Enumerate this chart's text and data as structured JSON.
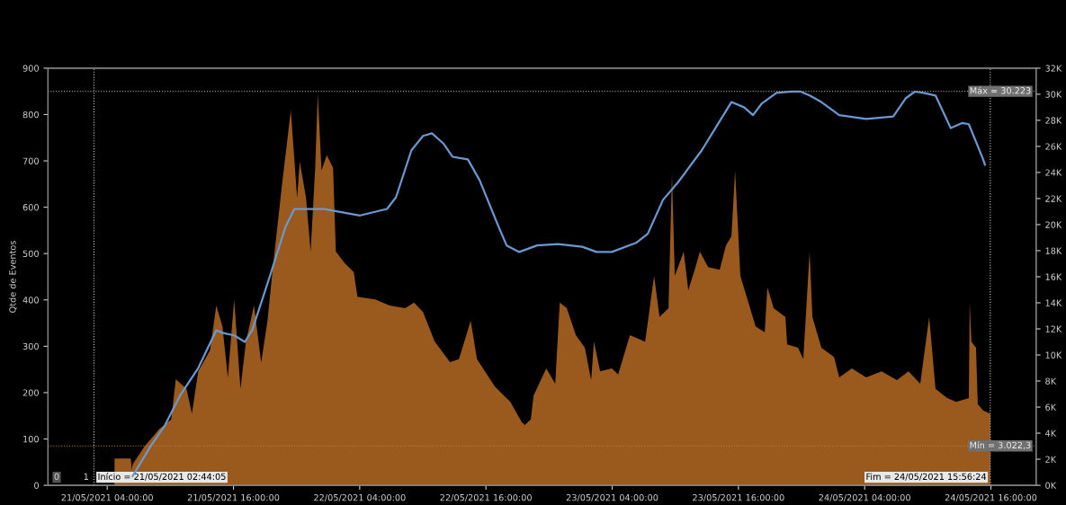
{
  "chart_data": {
    "type": "area",
    "ylabel": "Qtde de Eventos",
    "xlim": [
      "2021-05-20T22:22",
      "2021-05-24T20:18"
    ],
    "xticks": [
      {
        "value": "2021-05-21T04:00",
        "label": "21/05/2021 04:00:00"
      },
      {
        "value": "2021-05-21T16:00",
        "label": "21/05/2021 16:00:00"
      },
      {
        "value": "2021-05-22T04:00",
        "label": "22/05/2021 04:00:00"
      },
      {
        "value": "2021-05-22T16:00",
        "label": "22/05/2021 16:00:00"
      },
      {
        "value": "2021-05-23T04:00",
        "label": "23/05/2021 04:00:00"
      },
      {
        "value": "2021-05-23T16:00",
        "label": "23/05/2021 16:00:00"
      },
      {
        "value": "2021-05-24T04:00",
        "label": "24/05/2021 04:00:00"
      },
      {
        "value": "2021-05-24T16:00",
        "label": "24/05/2021 16:00:00"
      }
    ],
    "ylim": [
      0,
      900
    ],
    "yticks": [
      0,
      100,
      200,
      300,
      400,
      500,
      600,
      700,
      800,
      900
    ],
    "y2lim": [
      0,
      32000
    ],
    "y2ticks": [
      {
        "value": 0,
        "label": "0K"
      },
      {
        "value": 2000,
        "label": "2K"
      },
      {
        "value": 4000,
        "label": "4K"
      },
      {
        "value": 6000,
        "label": "6K"
      },
      {
        "value": 8000,
        "label": "8K"
      },
      {
        "value": 10000,
        "label": "10K"
      },
      {
        "value": 12000,
        "label": "12K"
      },
      {
        "value": 14000,
        "label": "14K"
      },
      {
        "value": 16000,
        "label": "16K"
      },
      {
        "value": 18000,
        "label": "18K"
      },
      {
        "value": 20000,
        "label": "20K"
      },
      {
        "value": 22000,
        "label": "22K"
      },
      {
        "value": 24000,
        "label": "24K"
      },
      {
        "value": 26000,
        "label": "26K"
      },
      {
        "value": 28000,
        "label": "28K"
      },
      {
        "value": 30000,
        "label": "30K"
      },
      {
        "value": 32000,
        "label": "32K"
      }
    ],
    "grid": false,
    "legend": false,
    "series": [
      {
        "color": "#9a5a1e",
        "x": [
          "2021-05-21T02:44",
          "2021-05-21T04:41",
          "2021-05-21T04:42",
          "2021-05-21T06:14",
          "2021-05-21T06:20",
          "2021-05-21T06:25",
          "2021-05-21T07:31",
          "2021-05-21T08:58",
          "2021-05-21T10:05",
          "2021-05-21T10:31",
          "2021-05-21T11:32",
          "2021-05-21T12:03",
          "2021-05-21T12:39",
          "2021-05-21T13:46",
          "2021-05-21T14:22",
          "2021-05-21T14:57",
          "2021-05-21T15:28",
          "2021-05-21T16:04",
          "2021-05-21T16:40",
          "2021-05-21T17:11",
          "2021-05-21T17:57",
          "2021-05-21T18:38",
          "2021-05-21T19:14",
          "2021-05-21T19:45",
          "2021-05-21T20:36",
          "2021-05-21T21:27",
          "2021-05-21T22:03",
          "2021-05-21T22:18",
          "2021-05-21T22:54",
          "2021-05-21T23:20",
          "2021-05-21T23:46",
          "2021-05-22T00:01",
          "2021-05-22T00:22",
          "2021-05-22T00:52",
          "2021-05-22T01:28",
          "2021-05-22T01:44",
          "2021-05-22T02:35",
          "2021-05-22T03:26",
          "2021-05-22T03:47",
          "2021-05-22T05:29",
          "2021-05-22T06:51",
          "2021-05-22T08:19",
          "2021-05-22T09:10",
          "2021-05-22T10:01",
          "2021-05-22T11:08",
          "2021-05-22T12:35",
          "2021-05-22T13:26",
          "2021-05-22T14:33",
          "2021-05-22T15:09",
          "2021-05-22T16:51",
          "2021-05-22T18:19",
          "2021-05-22T19:25",
          "2021-05-22T19:41",
          "2021-05-22T20:16",
          "2021-05-22T20:32",
          "2021-05-22T21:44",
          "2021-05-22T22:35",
          "2021-05-22T23:01",
          "2021-05-22T23:41",
          "2021-05-23T00:33",
          "2021-05-23T01:24",
          "2021-05-23T02:00",
          "2021-05-23T02:16",
          "2021-05-23T02:51",
          "2021-05-23T03:58",
          "2021-05-23T04:34",
          "2021-05-23T05:41",
          "2021-05-23T07:08",
          "2021-05-23T07:59",
          "2021-05-23T08:30",
          "2021-05-23T09:21",
          "2021-05-23T09:41",
          "2021-05-23T09:57",
          "2021-05-23T10:48",
          "2021-05-23T11:14",
          "2021-05-23T11:55",
          "2021-05-23T12:20",
          "2021-05-23T13:07",
          "2021-05-23T14:13",
          "2021-05-23T14:49",
          "2021-05-23T15:20",
          "2021-05-23T15:41",
          "2021-05-23T16:11",
          "2021-05-23T17:02",
          "2021-05-23T17:38",
          "2021-05-23T18:30",
          "2021-05-23T18:45",
          "2021-05-23T19:21",
          "2021-05-23T20:28",
          "2021-05-23T20:38",
          "2021-05-23T21:40",
          "2021-05-23T22:10",
          "2021-05-23T22:46",
          "2021-05-23T23:02",
          "2021-05-23T23:53",
          "2021-05-24T01:05",
          "2021-05-24T01:35",
          "2021-05-24T02:47",
          "2021-05-24T04:09",
          "2021-05-24T05:36",
          "2021-05-24T07:04",
          "2021-05-24T08:10",
          "2021-05-24T09:17",
          "2021-05-24T10:08",
          "2021-05-24T10:44",
          "2021-05-24T11:51",
          "2021-05-24T12:42",
          "2021-05-24T13:54",
          "2021-05-24T13:59",
          "2021-05-24T14:09",
          "2021-05-24T14:35",
          "2021-05-24T14:45",
          "2021-05-24T15:16",
          "2021-05-24T15:56"
        ],
        "values": [
          0,
          0,
          58,
          58,
          33,
          45,
          83,
          122,
          142,
          229,
          208,
          155,
          246,
          291,
          388,
          343,
          233,
          401,
          208,
          310,
          388,
          265,
          355,
          471,
          646,
          809,
          620,
          698,
          620,
          504,
          685,
          846,
          679,
          712,
          685,
          504,
          479,
          460,
          407,
          401,
          388,
          382,
          394,
          374,
          310,
          266,
          272,
          355,
          272,
          213,
          180,
          136,
          130,
          142,
          194,
          252,
          219,
          394,
          382,
          324,
          297,
          227,
          310,
          246,
          252,
          239,
          324,
          310,
          452,
          363,
          382,
          673,
          452,
          504,
          421,
          471,
          504,
          471,
          465,
          518,
          537,
          679,
          452,
          388,
          343,
          330,
          427,
          382,
          363,
          304,
          297,
          272,
          504,
          363,
          297,
          277,
          233,
          252,
          233,
          246,
          227,
          246,
          219,
          363,
          208,
          188,
          180,
          188,
          394,
          310,
          297,
          175,
          161,
          155
        ]
      },
      {
        "type": "line",
        "axis": "y2",
        "color": "#6a98d0",
        "x": [
          "2021-05-21T06:25",
          "2021-05-21T08:07",
          "2021-05-21T09:29",
          "2021-05-21T10:56",
          "2021-05-21T12:39",
          "2021-05-21T14:22",
          "2021-05-21T14:57",
          "2021-05-21T16:04",
          "2021-05-21T17:05",
          "2021-05-21T17:47",
          "2021-05-21T19:29",
          "2021-05-21T20:56",
          "2021-05-21T21:47",
          "2021-05-22T00:37",
          "2021-05-22T04:02",
          "2021-05-22T06:36",
          "2021-05-22T07:27",
          "2021-05-22T08:55",
          "2021-05-22T10:01",
          "2021-05-22T10:52",
          "2021-05-22T11:59",
          "2021-05-22T12:50",
          "2021-05-22T14:17",
          "2021-05-22T15:24",
          "2021-05-22T17:07",
          "2021-05-22T17:58",
          "2021-05-22T19:10",
          "2021-05-22T20:52",
          "2021-05-22T22:50",
          "2021-05-23T01:09",
          "2021-05-23T02:31",
          "2021-05-23T03:58",
          "2021-05-23T06:16",
          "2021-05-23T07:23",
          "2021-05-23T08:50",
          "2021-05-23T10:13",
          "2021-05-23T12:31",
          "2021-05-23T13:58",
          "2021-05-23T15:20",
          "2021-05-23T16:32",
          "2021-05-23T17:23",
          "2021-05-23T18:14",
          "2021-05-23T19:37",
          "2021-05-23T21:04",
          "2021-05-23T21:55",
          "2021-05-23T22:46",
          "2021-05-23T23:53",
          "2021-05-24T01:35",
          "2021-05-24T04:09",
          "2021-05-24T06:43",
          "2021-05-24T07:55",
          "2021-05-24T08:46",
          "2021-05-24T09:37",
          "2021-05-24T10:44",
          "2021-05-24T12:11",
          "2021-05-24T13:18",
          "2021-05-24T13:54",
          "2021-05-24T15:16",
          "2021-05-24T15:26"
        ],
        "values": [
          700,
          3000,
          4600,
          6900,
          9000,
          11900,
          11700,
          11500,
          11000,
          11900,
          16100,
          19800,
          21200,
          21200,
          20700,
          21200,
          22100,
          25700,
          26800,
          27000,
          26200,
          25200,
          25000,
          23400,
          20000,
          18400,
          17900,
          18400,
          18500,
          18300,
          17900,
          17900,
          18600,
          19300,
          21900,
          23200,
          25700,
          27600,
          29400,
          29000,
          28400,
          29300,
          30100,
          30200,
          30200,
          29900,
          29400,
          28400,
          28100,
          28300,
          29700,
          30200,
          30100,
          29900,
          27400,
          27800,
          27700,
          25000,
          24600
        ]
      }
    ],
    "ref_lines": [
      {
        "axis": "x",
        "value": "2021-05-21T02:44:05",
        "label": "Início = 21/05/2021 02:44:05",
        "color": "#cccccc",
        "line_style": "dotted"
      },
      {
        "axis": "x",
        "value": "2021-05-24T15:56:24",
        "label": "Fim = 24/05/2021 15:56:24",
        "color": "#cccccc",
        "line_style": "dotted"
      },
      {
        "axis": "y2",
        "value": 30223,
        "label": "Máx = 30.223",
        "color": "#999999",
        "line_style": "dotted"
      },
      {
        "axis": "y2",
        "value": 3022.3,
        "label": "Mín = 3.022,3",
        "color": "#c08040",
        "line_style": "dotted"
      }
    ],
    "annotations": [
      "0",
      "1"
    ]
  }
}
